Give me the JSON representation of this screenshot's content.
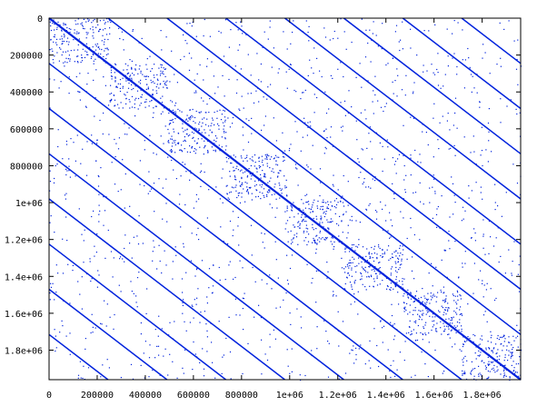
{
  "chart_data": {
    "type": "scatter",
    "title": "",
    "xlabel": "",
    "ylabel": "",
    "xlim": [
      0,
      1960000
    ],
    "ylim": [
      0,
      1960000
    ],
    "y_inverted": true,
    "grid": false,
    "legend": "none",
    "x_ticks": [
      {
        "value": 0,
        "label": "0"
      },
      {
        "value": 200000,
        "label": "200000"
      },
      {
        "value": 400000,
        "label": "400000"
      },
      {
        "value": 600000,
        "label": "600000"
      },
      {
        "value": 800000,
        "label": "800000"
      },
      {
        "value": 1000000,
        "label": "1e+06"
      },
      {
        "value": 1200000,
        "label": "1.2e+06"
      },
      {
        "value": 1400000,
        "label": "1.4e+06"
      },
      {
        "value": 1600000,
        "label": "1.6e+06"
      },
      {
        "value": 1800000,
        "label": "1.8e+06"
      }
    ],
    "y_ticks": [
      {
        "value": 0,
        "label": "0"
      },
      {
        "value": 200000,
        "label": "200000"
      },
      {
        "value": 400000,
        "label": "400000"
      },
      {
        "value": 600000,
        "label": "600000"
      },
      {
        "value": 800000,
        "label": "800000"
      },
      {
        "value": 1000000,
        "label": "1e+06"
      },
      {
        "value": 1200000,
        "label": "1.2e+06"
      },
      {
        "value": 1400000,
        "label": "1.4e+06"
      },
      {
        "value": 1600000,
        "label": "1.6e+06"
      },
      {
        "value": 1800000,
        "label": "1.8e+06"
      }
    ],
    "series_color": "#0022dd",
    "diagonal_offsets": [
      0,
      245000,
      490000,
      735000,
      980000,
      1225000,
      1470000,
      1715000,
      -245000,
      -490000,
      -735000,
      -980000,
      -1225000,
      -1470000,
      -1715000
    ],
    "dense_blocks": [
      {
        "start": 0,
        "end": 245000
      },
      {
        "start": 245000,
        "end": 490000
      },
      {
        "start": 490000,
        "end": 735000
      },
      {
        "start": 735000,
        "end": 980000
      },
      {
        "start": 980000,
        "end": 1225000
      },
      {
        "start": 1225000,
        "end": 1470000
      },
      {
        "start": 1470000,
        "end": 1715000
      },
      {
        "start": 1715000,
        "end": 1960000
      }
    ],
    "background_density": "sparse scattered nonzeros"
  }
}
